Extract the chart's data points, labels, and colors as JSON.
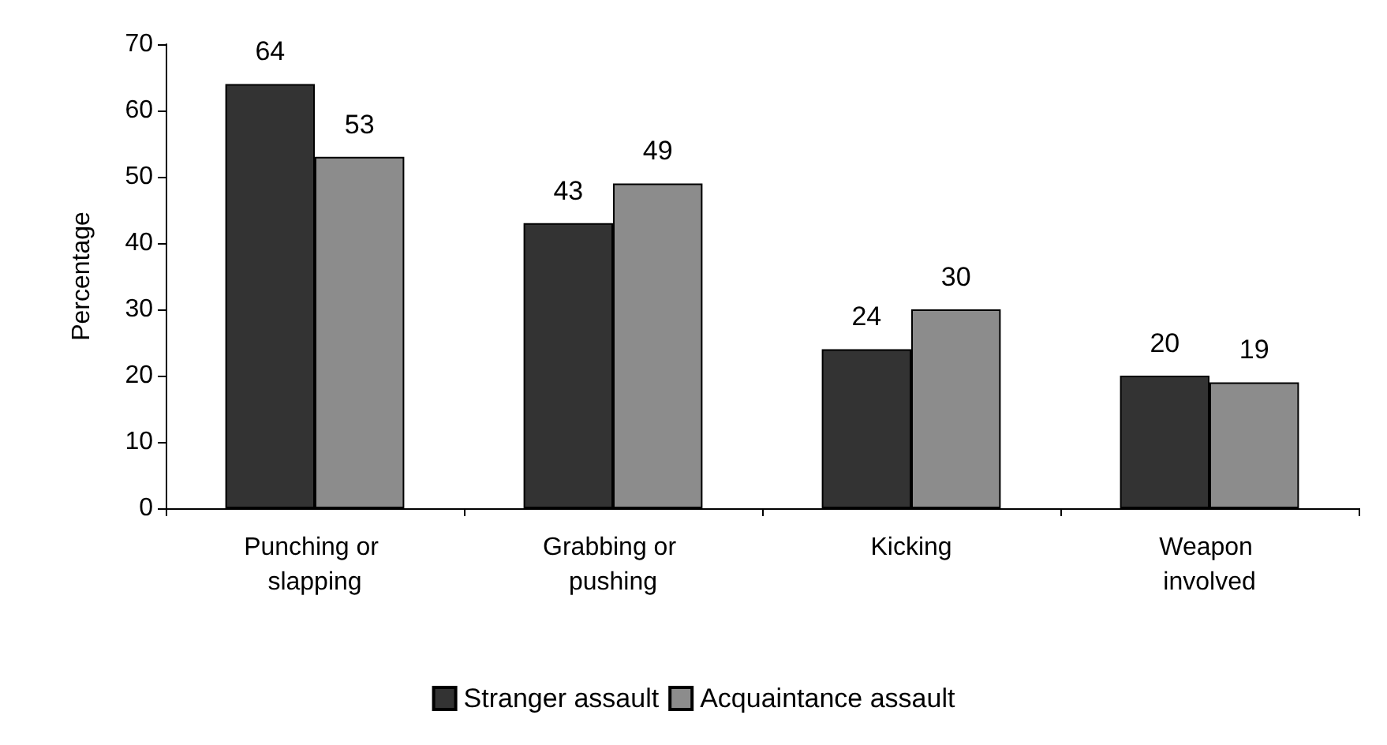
{
  "chart_data": {
    "type": "bar",
    "ylabel": "Percentage",
    "categories": [
      "Punching or slapping",
      "Grabbing or pushing",
      "Kicking",
      "Weapon involved"
    ],
    "series": [
      {
        "name": "Stranger assault",
        "color": "#333333",
        "values": [
          64,
          43,
          24,
          20
        ]
      },
      {
        "name": "Acquaintance assault",
        "color": "#8c8c8c",
        "values": [
          53,
          49,
          30,
          19
        ]
      }
    ],
    "ylim": [
      0,
      70
    ],
    "yticks": [
      0,
      10,
      20,
      30,
      40,
      50,
      60,
      70
    ],
    "data_labels": true,
    "grid": false,
    "legend": "bottom"
  }
}
